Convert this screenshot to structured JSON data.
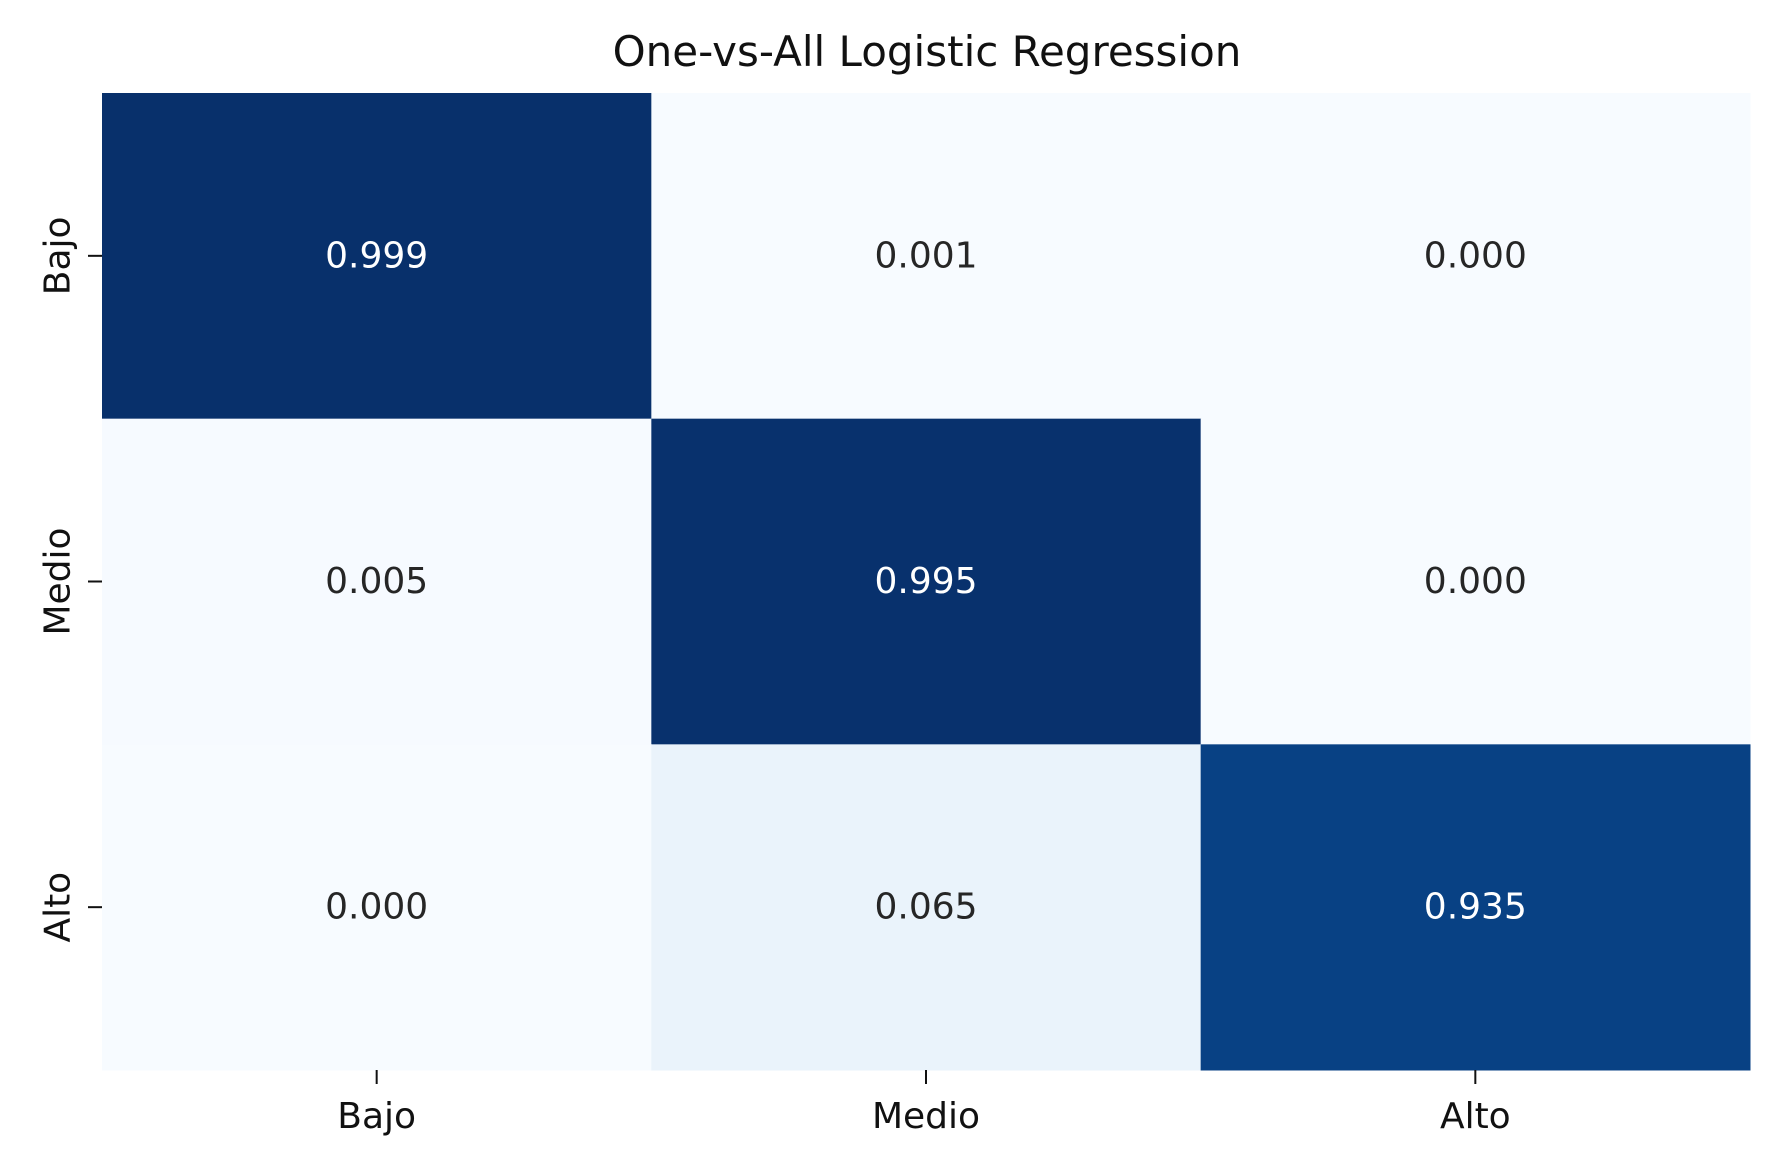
{
  "chart_data": {
    "type": "heatmap",
    "title": "One-vs-All Logistic Regression",
    "xlabel": "",
    "ylabel": "",
    "x_categories": [
      "Bajo",
      "Medio",
      "Alto"
    ],
    "y_categories": [
      "Bajo",
      "Medio",
      "Alto"
    ],
    "values": [
      [
        0.999,
        0.001,
        0.0
      ],
      [
        0.005,
        0.995,
        0.0
      ],
      [
        0.0,
        0.065,
        0.935
      ]
    ],
    "value_labels": [
      [
        "0.999",
        "0.001",
        "0.000"
      ],
      [
        "0.005",
        "0.995",
        "0.000"
      ],
      [
        "0.000",
        "0.065",
        "0.935"
      ]
    ],
    "colormap": "Blues",
    "colors": {
      "low": "#f7fbff",
      "high": "#08306b"
    },
    "text_colors": {
      "on_dark": "#ffffff",
      "on_light": "#262626"
    },
    "colorbar": false
  }
}
